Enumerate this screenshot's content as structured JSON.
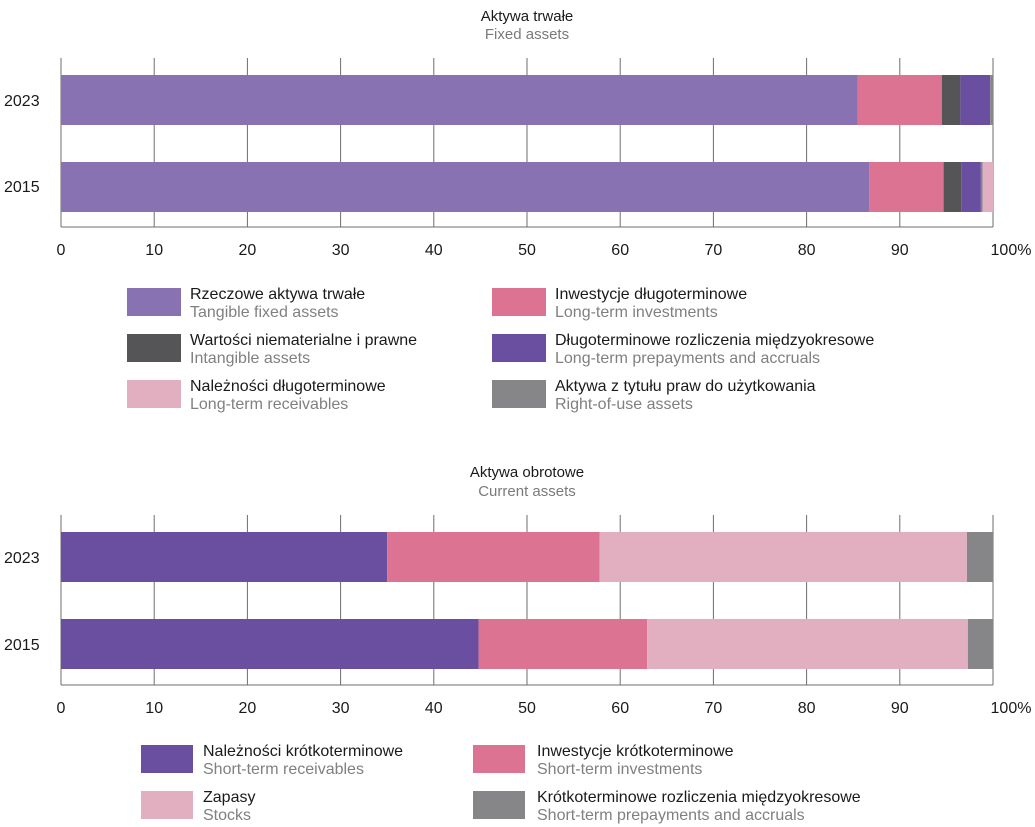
{
  "chart_data": [
    {
      "type": "bar",
      "orientation": "horizontal",
      "stacked": true,
      "title": "Aktywa trwałe",
      "subtitle": "Fixed assets",
      "categories": [
        "2023",
        "2015"
      ],
      "xlim": [
        0,
        100
      ],
      "xticks": [
        "0",
        "10",
        "20",
        "30",
        "40",
        "50",
        "60",
        "70",
        "80",
        "90",
        "100%"
      ],
      "grid": true,
      "legend_position": "bottom",
      "series": [
        {
          "name": "Rzeczowe aktywa trwałe",
          "name_en": "Tangible fixed assets",
          "color": "#8872b2",
          "values": [
            85.5,
            86.7
          ],
          "order": 0,
          "legend_row": 0,
          "legend_col": 0
        },
        {
          "name": "Inwestycje długoterminowe",
          "name_en": "Long-term investments",
          "color": "#dc7393",
          "values": [
            9.0,
            8.0
          ],
          "order": 1,
          "legend_row": 0,
          "legend_col": 1
        },
        {
          "name": "Wartości niematerialne i prawne",
          "name_en": "Intangible assets",
          "color": "#555558",
          "values": [
            2.0,
            1.9
          ],
          "order": 2,
          "legend_row": 1,
          "legend_col": 0
        },
        {
          "name": "Długoterminowe rozliczenia międzyokresowe",
          "name_en": "Long-term prepayments and accruals",
          "color": "#6a4fa1",
          "values": [
            3.2,
            2.1
          ],
          "order": 3,
          "legend_row": 1,
          "legend_col": 1
        },
        {
          "name": "Aktywa z tytułu praw do użytkowania",
          "name_en": "Right-of-use assets",
          "color": "#868689",
          "values": [
            0.3,
            0.2
          ],
          "order": 4,
          "legend_row": 2,
          "legend_col": 1
        },
        {
          "name": "Należności długoterminowe",
          "name_en": "Long-term receivables",
          "color": "#e2afc0",
          "values": [
            0.0,
            1.1
          ],
          "order": 5,
          "legend_row": 2,
          "legend_col": 0
        }
      ]
    },
    {
      "type": "bar",
      "orientation": "horizontal",
      "stacked": true,
      "title": "Aktywa obrotowe",
      "subtitle": "Current assets",
      "categories": [
        "2023",
        "2015"
      ],
      "xlim": [
        0,
        100
      ],
      "xticks": [
        "0",
        "10",
        "20",
        "30",
        "40",
        "50",
        "60",
        "70",
        "80",
        "90",
        "100%"
      ],
      "grid": true,
      "legend_position": "bottom",
      "series": [
        {
          "name": "Należności krótkoterminowe",
          "name_en": "Short-term receivables",
          "color": "#6a4fa1",
          "values": [
            35.0,
            44.8
          ],
          "order": 0,
          "legend_row": 0,
          "legend_col": 0
        },
        {
          "name": "Inwestycje krótkoterminowe",
          "name_en": "Short-term investments",
          "color": "#dc7393",
          "values": [
            22.8,
            18.1
          ],
          "order": 1,
          "legend_row": 0,
          "legend_col": 1
        },
        {
          "name": "Zapasy",
          "name_en": "Stocks",
          "color": "#e2afc0",
          "values": [
            39.4,
            34.4
          ],
          "order": 2,
          "legend_row": 1,
          "legend_col": 0
        },
        {
          "name": "Krótkoterminowe rozliczenia międzyokresowe",
          "name_en": "Short-term prepayments and accruals",
          "color": "#868689",
          "values": [
            2.8,
            2.7
          ],
          "order": 3,
          "legend_row": 1,
          "legend_col": 1
        }
      ]
    }
  ]
}
